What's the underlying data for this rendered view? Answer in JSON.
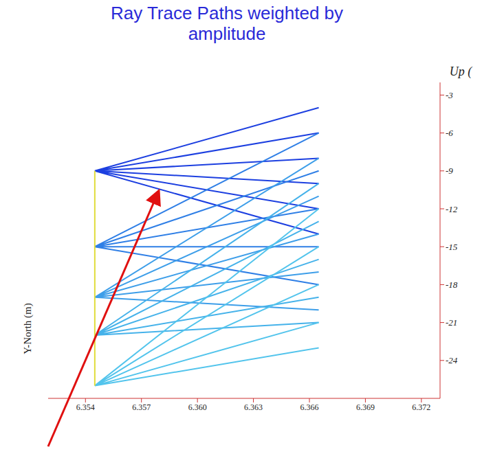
{
  "chart_data": {
    "type": "line",
    "title": "Ray Trace Paths weighted by amplitude",
    "ylabel": "Up (",
    "annotations": [
      "Y-North (m)"
    ],
    "xlim": [
      6.352,
      6.373
    ],
    "xticks": [
      6.354,
      6.357,
      {
        "value": 6.36,
        "label": "6.360"
      },
      6.363,
      6.366,
      6.369,
      6.372
    ],
    "ylim": [
      -27,
      -2
    ],
    "yticks": [
      -3,
      -6,
      -9,
      -12,
      -15,
      -18,
      -21,
      -24
    ],
    "grid": false,
    "series": [
      {
        "color": "#1c3fe0",
        "x": [
          6.3545,
          6.3665,
          6.3545,
          6.3665,
          6.3545,
          6.3665,
          6.3545,
          6.3665,
          6.3545,
          6.3665,
          6.3545,
          6.3665
        ],
        "values": [
          -9,
          -4,
          -9,
          -6,
          -9,
          -8,
          -9,
          -10,
          -9,
          -12,
          -9,
          -14
        ]
      },
      {
        "color": "#2f7fe6",
        "x": [
          6.3545,
          6.3665,
          6.3545,
          6.3665,
          6.3545,
          6.3665,
          6.3545,
          6.3665,
          6.3545,
          6.3665
        ],
        "values": [
          -15,
          -6,
          -15,
          -9,
          -15,
          -12,
          -15,
          -15,
          -15,
          -18
        ]
      },
      {
        "color": "#3d9ee9",
        "x": [
          6.3545,
          6.3665,
          6.3545,
          6.3665,
          6.3545,
          6.3665,
          6.3545,
          6.3665,
          6.3545,
          6.3665
        ],
        "values": [
          -19,
          -8,
          -19,
          -11,
          -19,
          -14,
          -19,
          -17,
          -19,
          -20
        ]
      },
      {
        "color": "#45b2ea",
        "x": [
          6.3545,
          6.3665,
          6.3545,
          6.3665,
          6.3545,
          6.3665,
          6.3545,
          6.3665,
          6.3545,
          6.3665
        ],
        "values": [
          -22,
          -10,
          -22,
          -13,
          -22,
          -16,
          -22,
          -19,
          -22,
          -21
        ]
      },
      {
        "color": "#52c4ec",
        "x": [
          6.3545,
          6.3665,
          6.3545,
          6.3665,
          6.3545,
          6.3665,
          6.3545,
          6.3665,
          6.3545,
          6.3665
        ],
        "values": [
          -26,
          -12,
          -26,
          -15,
          -26,
          -18,
          -26,
          -21,
          -26,
          -23
        ]
      },
      {
        "color": "#e0dc3a",
        "x": [
          6.3545,
          6.3545
        ],
        "values": [
          -9,
          -26
        ]
      }
    ]
  }
}
